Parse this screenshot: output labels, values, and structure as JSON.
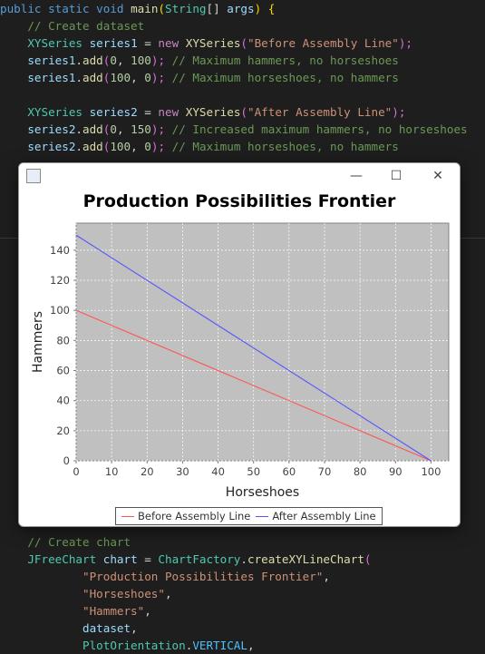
{
  "code_top": [
    [
      {
        "t": "public ",
        "c": "kw"
      },
      {
        "t": "static ",
        "c": "kw"
      },
      {
        "t": "void ",
        "c": "kw"
      },
      {
        "t": "main",
        "c": "fn"
      },
      {
        "t": "(",
        "c": "br"
      },
      {
        "t": "String",
        "c": "ty"
      },
      {
        "t": "[] ",
        "c": "pu"
      },
      {
        "t": "args",
        "c": "var"
      },
      {
        "t": ") ",
        "c": "br"
      },
      {
        "t": "{",
        "c": "br"
      }
    ],
    [
      {
        "t": "    // Create dataset",
        "c": "cm"
      }
    ],
    [
      {
        "t": "    XYSeries ",
        "c": "ty"
      },
      {
        "t": "series1",
        "c": "var"
      },
      {
        "t": " = ",
        "c": "pu"
      },
      {
        "t": "new ",
        "c": "kw2"
      },
      {
        "t": "XYSeries",
        "c": "fn"
      },
      {
        "t": "(",
        "c": "br2"
      },
      {
        "t": "\"Before Assembly Line\"",
        "c": "str"
      },
      {
        "t": ");",
        "c": "br2"
      }
    ],
    [
      {
        "t": "    series1",
        "c": "var"
      },
      {
        "t": ".",
        "c": "pu"
      },
      {
        "t": "add",
        "c": "fn"
      },
      {
        "t": "(",
        "c": "br2"
      },
      {
        "t": "0",
        "c": "num"
      },
      {
        "t": ", ",
        "c": "pu"
      },
      {
        "t": "100",
        "c": "num"
      },
      {
        "t": "); ",
        "c": "br2"
      },
      {
        "t": "// Maximum hammers, no horseshoes",
        "c": "cm"
      }
    ],
    [
      {
        "t": "    series1",
        "c": "var"
      },
      {
        "t": ".",
        "c": "pu"
      },
      {
        "t": "add",
        "c": "fn"
      },
      {
        "t": "(",
        "c": "br2"
      },
      {
        "t": "100",
        "c": "num"
      },
      {
        "t": ", ",
        "c": "pu"
      },
      {
        "t": "0",
        "c": "num"
      },
      {
        "t": "); ",
        "c": "br2"
      },
      {
        "t": "// Maximum horseshoes, no hammers",
        "c": "cm"
      }
    ],
    [],
    [
      {
        "t": "    XYSeries ",
        "c": "ty"
      },
      {
        "t": "series2",
        "c": "var"
      },
      {
        "t": " = ",
        "c": "pu"
      },
      {
        "t": "new ",
        "c": "kw2"
      },
      {
        "t": "XYSeries",
        "c": "fn"
      },
      {
        "t": "(",
        "c": "br2"
      },
      {
        "t": "\"After Assembly Line\"",
        "c": "str"
      },
      {
        "t": ");",
        "c": "br2"
      }
    ],
    [
      {
        "t": "    series2",
        "c": "var"
      },
      {
        "t": ".",
        "c": "pu"
      },
      {
        "t": "add",
        "c": "fn"
      },
      {
        "t": "(",
        "c": "br2"
      },
      {
        "t": "0",
        "c": "num"
      },
      {
        "t": ", ",
        "c": "pu"
      },
      {
        "t": "150",
        "c": "num"
      },
      {
        "t": "); ",
        "c": "br2"
      },
      {
        "t": "// Increased maximum hammers, no horseshoes",
        "c": "cm"
      }
    ],
    [
      {
        "t": "    series2",
        "c": "var"
      },
      {
        "t": ".",
        "c": "pu"
      },
      {
        "t": "add",
        "c": "fn"
      },
      {
        "t": "(",
        "c": "br2"
      },
      {
        "t": "100",
        "c": "num"
      },
      {
        "t": ", ",
        "c": "pu"
      },
      {
        "t": "0",
        "c": "num"
      },
      {
        "t": "); ",
        "c": "br2"
      },
      {
        "t": "// Maximum horseshoes, no hammers",
        "c": "cm"
      }
    ]
  ],
  "code_bottom": [
    [
      {
        "t": "    // Create chart",
        "c": "cm"
      }
    ],
    [
      {
        "t": "    JFreeChart ",
        "c": "ty"
      },
      {
        "t": "chart",
        "c": "var"
      },
      {
        "t": " = ",
        "c": "pu"
      },
      {
        "t": "ChartFactory",
        "c": "ty"
      },
      {
        "t": ".",
        "c": "pu"
      },
      {
        "t": "createXYLineChart",
        "c": "fn"
      },
      {
        "t": "(",
        "c": "br2"
      }
    ],
    [
      {
        "t": "            \"Production Possibilities Frontier\"",
        "c": "str"
      },
      {
        "t": ",",
        "c": "pu"
      }
    ],
    [
      {
        "t": "            \"Horseshoes\"",
        "c": "str"
      },
      {
        "t": ",",
        "c": "pu"
      }
    ],
    [
      {
        "t": "            \"Hammers\"",
        "c": "str"
      },
      {
        "t": ",",
        "c": "pu"
      }
    ],
    [
      {
        "t": "            dataset",
        "c": "var"
      },
      {
        "t": ",",
        "c": "pu"
      }
    ],
    [
      {
        "t": "            PlotOrientation",
        "c": "ty"
      },
      {
        "t": ".",
        "c": "pu"
      },
      {
        "t": "VERTICAL",
        "c": "cst"
      },
      {
        "t": ",",
        "c": "pu"
      }
    ]
  ],
  "window": {
    "minimize_glyph": "—",
    "maximize_glyph": "☐",
    "close_glyph": "✕"
  },
  "chart_data": {
    "type": "line",
    "title": "Production Possibilities Frontier",
    "xlabel": "Horseshoes",
    "ylabel": "Hammers",
    "xlim": [
      0,
      105
    ],
    "ylim": [
      0,
      158
    ],
    "x_ticks": [
      0,
      10,
      20,
      30,
      40,
      50,
      60,
      70,
      80,
      90,
      100
    ],
    "y_ticks": [
      0,
      20,
      40,
      60,
      80,
      100,
      120,
      140
    ],
    "grid": true,
    "legend_position": "bottom",
    "plot_background": "#c0c0c0",
    "series": [
      {
        "name": "Before Assembly Line",
        "color": "#ff5555",
        "x": [
          0,
          100
        ],
        "y": [
          100,
          0
        ]
      },
      {
        "name": "After Assembly Line",
        "color": "#5555ff",
        "x": [
          0,
          100
        ],
        "y": [
          150,
          0
        ]
      }
    ]
  }
}
